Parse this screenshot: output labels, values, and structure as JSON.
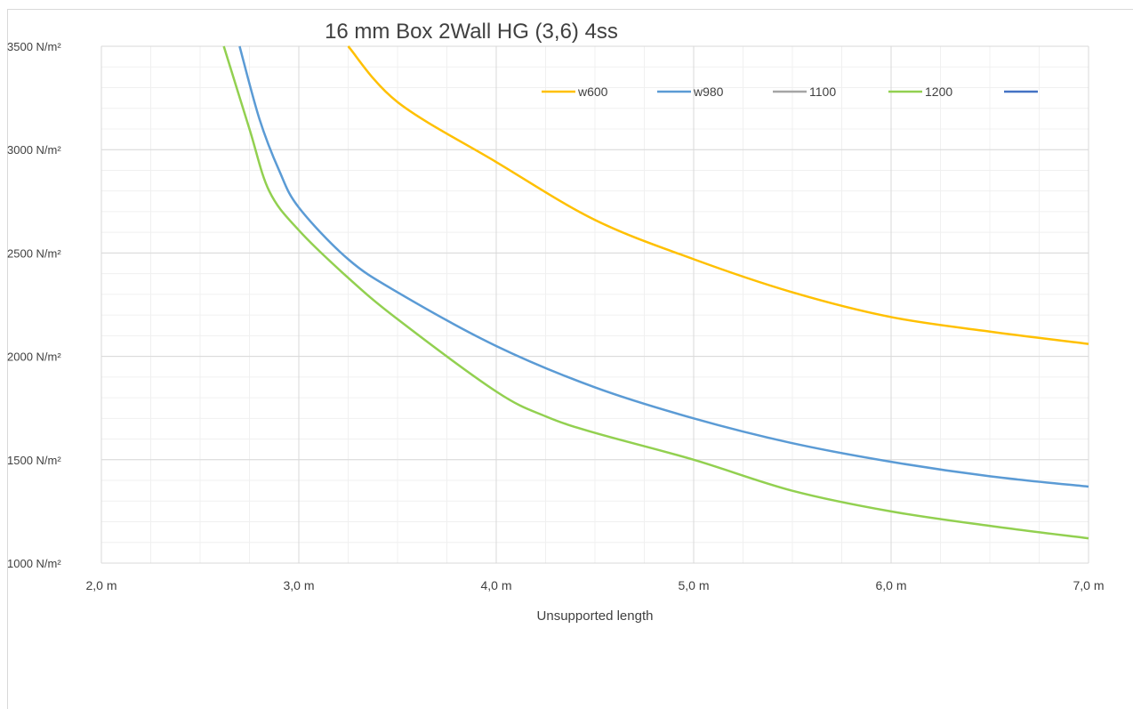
{
  "chart_data": {
    "type": "line",
    "title": "16 mm Box 2Wall HG (3,6) 4ss",
    "xlabel": "Unsupported length",
    "ylabel": "",
    "xlim": [
      2.0,
      7.0
    ],
    "ylim": [
      1000,
      3500
    ],
    "x_ticks": [
      2,
      3,
      4,
      5,
      6,
      7
    ],
    "x_tick_labels": [
      "2,0 m",
      "3,0 m",
      "4,0 m",
      "5,0 m",
      "6,0 m",
      "7,0 m"
    ],
    "y_ticks": [
      1000,
      1500,
      2000,
      2500,
      3000,
      3500
    ],
    "y_tick_labels": [
      "1000 N/m²",
      "1500 N/m²",
      "2000 N/m²",
      "2500 N/m²",
      "3000 N/m²",
      "3500 N/m²"
    ],
    "x_minor_step": 0.25,
    "y_minor_step": 100,
    "grid": true,
    "legend_position": "top-right",
    "series": [
      {
        "name": "w600",
        "color": "#ffc000",
        "x": [
          3.25,
          3.5,
          4.0,
          4.5,
          5.0,
          5.5,
          6.0,
          6.5,
          7.0
        ],
        "y": [
          3500,
          3230,
          2940,
          2660,
          2470,
          2310,
          2190,
          2120,
          2060
        ]
      },
      {
        "name": "w980",
        "color": "#5b9bd5",
        "x": [
          2.7,
          2.8,
          2.9,
          3.0,
          3.25,
          3.5,
          4.0,
          4.5,
          5.0,
          5.5,
          6.0,
          6.5,
          7.0
        ],
        "y": [
          3500,
          3150,
          2900,
          2720,
          2470,
          2310,
          2050,
          1850,
          1700,
          1580,
          1490,
          1420,
          1370
        ]
      },
      {
        "name": "1100",
        "color": "#a5a5a5",
        "x": [],
        "y": []
      },
      {
        "name": "1200",
        "color": "#92d050",
        "x": [
          2.62,
          2.75,
          2.85,
          3.0,
          3.25,
          3.5,
          4.0,
          4.25,
          4.5,
          5.0,
          5.5,
          6.0,
          6.5,
          7.0
        ],
        "y": [
          3500,
          3100,
          2800,
          2610,
          2380,
          2180,
          1830,
          1710,
          1630,
          1500,
          1350,
          1250,
          1180,
          1120
        ]
      },
      {
        "name": "",
        "color": "#4472c4",
        "x": [],
        "y": []
      }
    ]
  }
}
